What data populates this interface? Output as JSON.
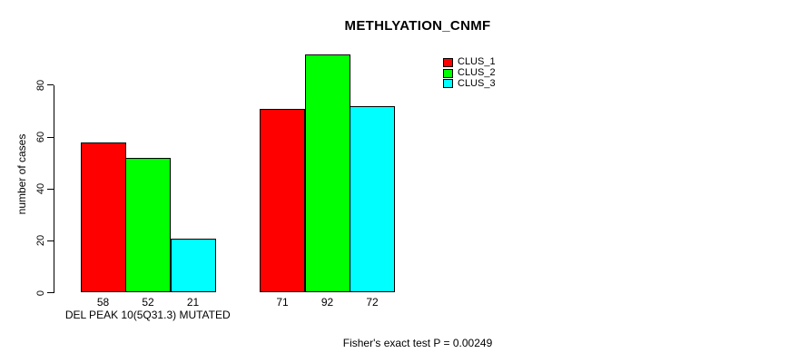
{
  "chart_data": {
    "type": "bar",
    "title": "METHLYATION_CNMF",
    "ylabel": "number of cases",
    "xlabel": "",
    "footnote": "Fisher's exact test P = 0.00249",
    "yticks": [
      0,
      20,
      40,
      60,
      80
    ],
    "ylim": [
      0,
      92
    ],
    "grid": false,
    "legend_position": "top-right",
    "background": "#ffffff",
    "axis_color": "#000000",
    "text_color": "#000000",
    "bar_border_color": "#000000",
    "series": [
      {
        "name": "CLUS_1",
        "color": "#ff0000"
      },
      {
        "name": "CLUS_2",
        "color": "#00ff00"
      },
      {
        "name": "CLUS_3",
        "color": "#00ffff"
      }
    ],
    "groups": [
      {
        "label": "DEL PEAK 10(5Q31.3) MUTATED",
        "values": [
          58,
          52,
          21
        ],
        "value_labels": [
          "58",
          "52",
          "21"
        ]
      },
      {
        "label": "",
        "values": [
          71,
          92,
          72
        ],
        "value_labels": [
          "71",
          "92",
          "72"
        ]
      }
    ]
  }
}
